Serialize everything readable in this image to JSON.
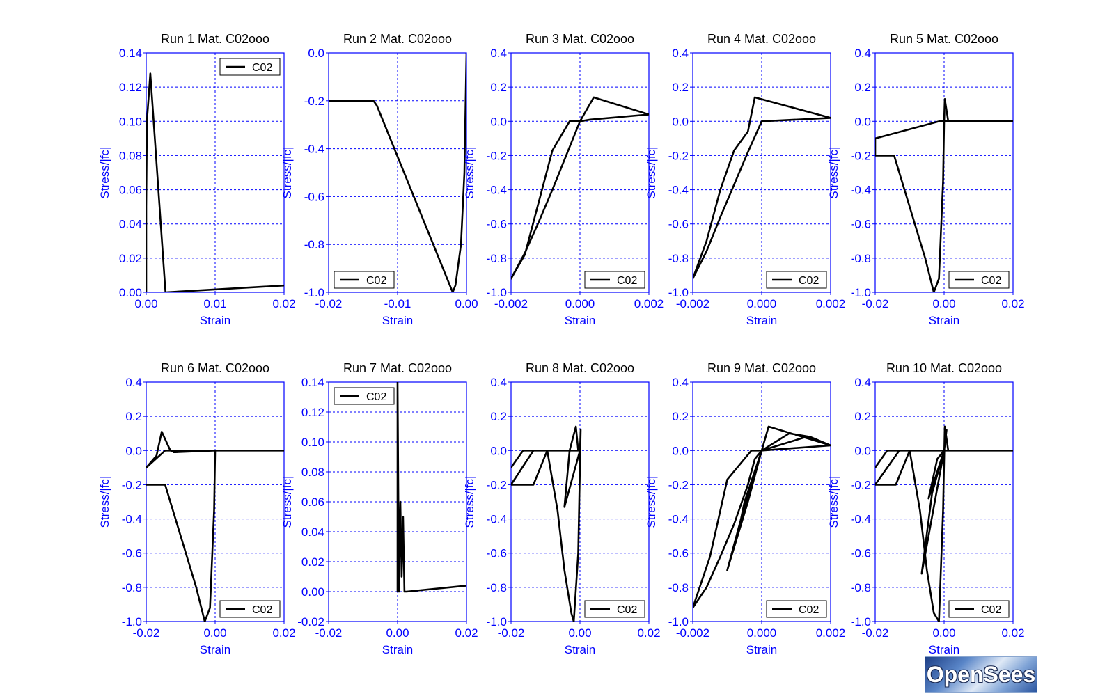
{
  "chart_data": [
    {
      "type": "line",
      "title": "Run 1   Mat. C02ooo",
      "xlabel": "Strain",
      "ylabel": "Stress/|fc|",
      "xlim": [
        0.0,
        0.02
      ],
      "ylim": [
        0.0,
        0.14
      ],
      "xticks": [
        "0.00",
        "0.01",
        "0.02"
      ],
      "xtick_values": [
        0.0,
        0.01,
        0.02
      ],
      "yticks": [
        "0.00",
        "0.02",
        "0.04",
        "0.06",
        "0.08",
        "0.10",
        "0.12",
        "0.14"
      ],
      "ytick_values": [
        0.0,
        0.02,
        0.04,
        0.06,
        0.08,
        0.1,
        0.12,
        0.14
      ],
      "zero_lines": {
        "x": [
          0.01
        ],
        "y": []
      },
      "legend": {
        "label": "C02",
        "position": "top-right"
      },
      "series": [
        {
          "x": [
            0.0,
            0.0,
            0.0001,
            0.0006,
            0.0028,
            0.02
          ],
          "y": [
            0.0,
            0.05,
            0.1,
            0.128,
            0.0,
            0.004
          ]
        }
      ]
    },
    {
      "type": "line",
      "title": "Run 2   Mat. C02ooo",
      "xlabel": "Strain",
      "ylabel": "Stress/|fc|",
      "xlim": [
        -0.02,
        0.0
      ],
      "ylim": [
        -1.0,
        0.0
      ],
      "xticks": [
        "-0.02",
        "-0.01",
        "0.00"
      ],
      "xtick_values": [
        -0.02,
        -0.01,
        0.0
      ],
      "yticks": [
        "-1.0",
        "-0.8",
        "-0.6",
        "-0.4",
        "-0.2",
        "0.0"
      ],
      "ytick_values": [
        -1.0,
        -0.8,
        -0.6,
        -0.4,
        -0.2,
        0.0
      ],
      "zero_lines": {
        "x": [
          -0.01
        ],
        "y": []
      },
      "legend": {
        "label": "C02",
        "position": "bottom-left"
      },
      "series": [
        {
          "x": [
            -0.02,
            -0.0135,
            -0.013,
            -0.002,
            -0.0016,
            -0.0008,
            -0.0003,
            0.0
          ],
          "y": [
            -0.2,
            -0.2,
            -0.22,
            -1.0,
            -0.97,
            -0.8,
            -0.5,
            0.0
          ]
        }
      ]
    },
    {
      "type": "line",
      "title": "Run 3   Mat. C02ooo",
      "xlabel": "Strain",
      "ylabel": "Stress/|fc|",
      "xlim": [
        -0.002,
        0.002
      ],
      "ylim": [
        -1.0,
        0.4
      ],
      "xticks": [
        "-0.002",
        "0.000",
        "0.002"
      ],
      "xtick_values": [
        -0.002,
        0.0,
        0.002
      ],
      "yticks": [
        "-1.0",
        "-0.8",
        "-0.6",
        "-0.4",
        "-0.2",
        "0.0",
        "0.2",
        "0.4"
      ],
      "ytick_values": [
        -1.0,
        -0.8,
        -0.6,
        -0.4,
        -0.2,
        0.0,
        0.2,
        0.4
      ],
      "zero_lines": {
        "x": [
          0.0
        ],
        "y": [
          0.0
        ]
      },
      "legend": {
        "label": "C02",
        "position": "bottom-right"
      },
      "series": [
        {
          "x": [
            0.0,
            -0.0004,
            -0.0008,
            -0.0012,
            -0.0016,
            -0.002,
            -0.0016,
            -0.0008,
            -0.0003,
            0.0,
            0.0004,
            0.002,
            0.0003,
            0.0
          ],
          "y": [
            0.0,
            -0.2,
            -0.4,
            -0.59,
            -0.77,
            -0.92,
            -0.78,
            -0.17,
            0.0,
            0.0,
            0.14,
            0.04,
            0.01,
            0.0
          ]
        }
      ]
    },
    {
      "type": "line",
      "title": "Run 4   Mat. C02ooo",
      "xlabel": "Strain",
      "ylabel": "Stress/|fc|",
      "xlim": [
        -0.002,
        0.002
      ],
      "ylim": [
        -1.0,
        0.4
      ],
      "xticks": [
        "-0.002",
        "0.000",
        "0.002"
      ],
      "xtick_values": [
        -0.002,
        0.0,
        0.002
      ],
      "yticks": [
        "-1.0",
        "-0.8",
        "-0.6",
        "-0.4",
        "-0.2",
        "0.0",
        "0.2",
        "0.4"
      ],
      "ytick_values": [
        -1.0,
        -0.8,
        -0.6,
        -0.4,
        -0.2,
        0.0,
        0.2,
        0.4
      ],
      "zero_lines": {
        "x": [
          0.0
        ],
        "y": [
          0.0
        ]
      },
      "legend": {
        "label": "C02",
        "position": "bottom-right"
      },
      "series": [
        {
          "x": [
            0.002,
            0.0,
            -0.0004,
            -0.0008,
            -0.0012,
            -0.0016,
            -0.002,
            -0.0016,
            -0.0012,
            -0.0008,
            -0.0004,
            -0.0002,
            0.002
          ],
          "y": [
            0.02,
            0.0,
            -0.18,
            -0.37,
            -0.56,
            -0.76,
            -0.92,
            -0.7,
            -0.4,
            -0.17,
            -0.06,
            0.14,
            0.02
          ]
        }
      ]
    },
    {
      "type": "line",
      "title": "Run 5   Mat. C02ooo",
      "xlabel": "Strain",
      "ylabel": "Stress/|fc|",
      "xlim": [
        -0.02,
        0.02
      ],
      "ylim": [
        -1.0,
        0.4
      ],
      "xticks": [
        "-0.02",
        "0.00",
        "0.02"
      ],
      "xtick_values": [
        -0.02,
        0.0,
        0.02
      ],
      "yticks": [
        "-1.0",
        "-0.8",
        "-0.6",
        "-0.4",
        "-0.2",
        "0.0",
        "0.2",
        "0.4"
      ],
      "ytick_values": [
        -1.0,
        -0.8,
        -0.6,
        -0.4,
        -0.2,
        0.0,
        0.2,
        0.4
      ],
      "zero_lines": {
        "x": [
          0.0
        ],
        "y": [
          0.0
        ]
      },
      "legend": {
        "label": "C02",
        "position": "bottom-right"
      },
      "series": [
        {
          "x": [
            0.0,
            0.0002,
            0.0012,
            0.0,
            -0.0014,
            -0.02,
            -0.02,
            -0.0145,
            -0.0055,
            -0.003,
            -0.0015,
            -0.0003,
            0.0,
            0.02
          ],
          "y": [
            0.0,
            0.13,
            0.0,
            0.0,
            0.0,
            -0.1,
            -0.2,
            -0.2,
            -0.8,
            -1.0,
            -0.92,
            -0.35,
            0.0,
            0.0
          ]
        }
      ]
    },
    {
      "type": "line",
      "title": "Run 6   Mat. C02ooo",
      "xlabel": "Strain",
      "ylabel": "Stress/|fc|",
      "xlim": [
        -0.02,
        0.02
      ],
      "ylim": [
        -1.0,
        0.4
      ],
      "xticks": [
        "-0.02",
        "0.00",
        "0.02"
      ],
      "xtick_values": [
        -0.02,
        0.0,
        0.02
      ],
      "yticks": [
        "-1.0",
        "-0.8",
        "-0.6",
        "-0.4",
        "-0.2",
        "0.0",
        "0.2",
        "0.4"
      ],
      "ytick_values": [
        -1.0,
        -0.8,
        -0.6,
        -0.4,
        -0.2,
        0.0,
        0.2,
        0.4
      ],
      "zero_lines": {
        "x": [
          0.0
        ],
        "y": [
          0.0
        ]
      },
      "legend": {
        "label": "C02",
        "position": "bottom-right"
      },
      "series": [
        {
          "x": [
            -0.02,
            -0.0145,
            -0.0055,
            -0.003,
            -0.0015,
            -0.0003,
            0.0,
            0.0,
            -0.0145,
            -0.02,
            -0.017,
            -0.0155,
            -0.013,
            -0.011,
            -0.012,
            0.0,
            0.02
          ],
          "y": [
            -0.2,
            -0.2,
            -0.8,
            -1.0,
            -0.92,
            -0.35,
            0.0,
            0.0,
            0.0,
            -0.1,
            -0.03,
            0.11,
            0.0,
            -0.01,
            -0.01,
            0.0,
            0.0
          ]
        }
      ]
    },
    {
      "type": "line",
      "title": "Run 7   Mat. C02ooo",
      "xlabel": "Strain",
      "ylabel": "Stress/|fc|",
      "xlim": [
        -0.02,
        0.02
      ],
      "ylim": [
        -0.02,
        0.14
      ],
      "xticks": [
        "-0.02",
        "0.00",
        "0.02"
      ],
      "xtick_values": [
        -0.02,
        0.0,
        0.02
      ],
      "yticks": [
        "-0.02",
        "0.00",
        "0.02",
        "0.04",
        "0.06",
        "0.08",
        "0.10",
        "0.12",
        "0.14"
      ],
      "ytick_values": [
        -0.02,
        0.0,
        0.02,
        0.04,
        0.06,
        0.08,
        0.1,
        0.12,
        0.14
      ],
      "zero_lines": {
        "x": [
          0.0
        ],
        "y": [
          0.0
        ]
      },
      "legend": {
        "label": "C02",
        "position": "top-left"
      },
      "series": [
        {
          "x": [
            0.0,
            0.0,
            0.0004,
            0.0008,
            0.0012,
            0.0016,
            0.002,
            0.0026,
            0.02
          ],
          "y": [
            0.0,
            0.14,
            0.0,
            0.06,
            0.01,
            0.05,
            0.0,
            0.0,
            0.004
          ]
        }
      ]
    },
    {
      "type": "line",
      "title": "Run 8   Mat. C02ooo",
      "xlabel": "Strain",
      "ylabel": "Stress/|fc|",
      "xlim": [
        -0.02,
        0.02
      ],
      "ylim": [
        -1.0,
        0.4
      ],
      "xticks": [
        "-0.02",
        "0.00",
        "0.02"
      ],
      "xtick_values": [
        -0.02,
        0.0,
        0.02
      ],
      "yticks": [
        "-1.0",
        "-0.8",
        "-0.6",
        "-0.4",
        "-0.2",
        "0.0",
        "0.2",
        "0.4"
      ],
      "ytick_values": [
        -1.0,
        -0.8,
        -0.6,
        -0.4,
        -0.2,
        0.0,
        0.2,
        0.4
      ],
      "zero_lines": {
        "x": [
          0.0
        ],
        "y": [
          0.0
        ]
      },
      "legend": {
        "label": "C02",
        "position": "bottom-right"
      },
      "series": [
        {
          "x": [
            -0.02,
            -0.0165,
            0.0,
            -0.0135,
            -0.02,
            -0.0135,
            -0.0095,
            -0.0065,
            -0.0045,
            -0.0025,
            -0.0018,
            -0.0005,
            0.0002,
            0.0,
            -0.0045,
            -0.003,
            -0.0012,
            -0.0005,
            0.0
          ],
          "y": [
            -0.1,
            0.0,
            0.0,
            0.0,
            -0.2,
            -0.2,
            0.0,
            -0.35,
            -0.7,
            -0.95,
            -1.0,
            -0.6,
            0.12,
            0.0,
            -0.33,
            0.0,
            0.14,
            0.0,
            0.0
          ]
        }
      ]
    },
    {
      "type": "line",
      "title": "Run 9   Mat. C02ooo",
      "xlabel": "Strain",
      "ylabel": "Stress/|fc|",
      "xlim": [
        -0.002,
        0.002
      ],
      "ylim": [
        -1.0,
        0.4
      ],
      "xticks": [
        "-0.002",
        "0.000",
        "0.002"
      ],
      "xtick_values": [
        -0.002,
        0.0,
        0.002
      ],
      "yticks": [
        "-1.0",
        "-0.8",
        "-0.6",
        "-0.4",
        "-0.2",
        "0.0",
        "0.2",
        "0.4"
      ],
      "ytick_values": [
        -1.0,
        -0.8,
        -0.6,
        -0.4,
        -0.2,
        0.0,
        0.2,
        0.4
      ],
      "zero_lines": {
        "x": [
          0.0
        ],
        "y": [
          0.0
        ]
      },
      "legend": {
        "label": "C02",
        "position": "bottom-right"
      },
      "series": [
        {
          "x": [
            0.0,
            -0.0002,
            -0.0004,
            -0.0008,
            -0.0012,
            -0.0016,
            -0.002,
            -0.0015,
            -0.001,
            -0.0003,
            0.0,
            0.0002,
            0.002,
            0.0,
            0.0008,
            0.0014,
            0.002,
            0.0,
            -0.0006,
            -0.001,
            -0.0004,
            0.0,
            0.0013,
            0.002,
            0.0,
            -0.0007,
            -0.0005,
            0.0,
            0.002
          ],
          "y": [
            0.0,
            -0.05,
            -0.2,
            -0.43,
            -0.62,
            -0.8,
            -0.92,
            -0.62,
            -0.17,
            0.0,
            0.0,
            0.14,
            0.03,
            0.0,
            0.1,
            0.08,
            0.03,
            0.0,
            -0.4,
            -0.7,
            -0.3,
            0.0,
            0.08,
            0.03,
            0.0,
            -0.5,
            -0.3,
            0.0,
            0.03
          ]
        }
      ]
    },
    {
      "type": "line",
      "title": "Run 10   Mat. C02ooo",
      "xlabel": "Strain",
      "ylabel": "Stress/|fc|",
      "xlim": [
        -0.02,
        0.02
      ],
      "ylim": [
        -1.0,
        0.4
      ],
      "xticks": [
        "-0.02",
        "0.00",
        "0.02"
      ],
      "xtick_values": [
        -0.02,
        0.0,
        0.02
      ],
      "yticks": [
        "-1.0",
        "-0.8",
        "-0.6",
        "-0.4",
        "-0.2",
        "0.0",
        "0.2",
        "0.4"
      ],
      "ytick_values": [
        -1.0,
        -0.8,
        -0.6,
        -0.4,
        -0.2,
        0.0,
        0.2,
        0.4
      ],
      "zero_lines": {
        "x": [
          0.0
        ],
        "y": [
          0.0
        ]
      },
      "legend": {
        "label": "C02",
        "position": "bottom-right"
      },
      "series": [
        {
          "x": [
            -0.02,
            -0.0165,
            0.02,
            -0.013,
            -0.02,
            -0.014,
            -0.01,
            -0.007,
            -0.005,
            -0.003,
            -0.0015,
            -0.0003,
            0.0002,
            0.0012,
            0.0,
            -0.0065,
            -0.0035,
            0.0,
            0.0007,
            0.0,
            -0.0045,
            -0.002,
            0.0
          ],
          "y": [
            -0.1,
            0.0,
            0.0,
            0.0,
            -0.2,
            -0.2,
            0.0,
            -0.35,
            -0.7,
            -0.95,
            -1.0,
            -0.35,
            0.14,
            0.0,
            0.0,
            -0.72,
            -0.25,
            0.0,
            0.12,
            0.0,
            -0.28,
            -0.05,
            0.0
          ]
        }
      ]
    }
  ],
  "logo": {
    "text": "OpenSees",
    "description": "OpenSees logo"
  },
  "colors": {
    "axes": "#0000ff",
    "curve": "#000000",
    "grid": "#0000ff",
    "title": "#000000"
  }
}
